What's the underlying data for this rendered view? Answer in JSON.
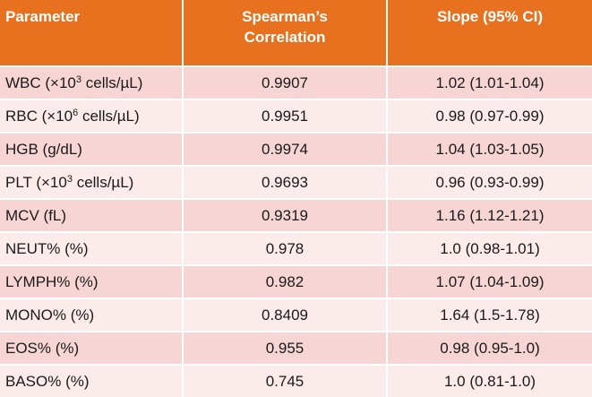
{
  "table": {
    "headers": {
      "parameter": "Parameter",
      "correlation_line1": "Spearman’s",
      "correlation_line2": "Correlation",
      "slope": "Slope (95% CI)"
    },
    "rows": [
      {
        "param_prefix": "WBC (×10",
        "param_sup": "3",
        "param_suffix": " cells/µL)",
        "correlation": "0.9907",
        "slope": "1.02 (1.01-1.04)"
      },
      {
        "param_prefix": "RBC (×10",
        "param_sup": "6",
        "param_suffix": " cells/µL)",
        "correlation": "0.9951",
        "slope": "0.98 (0.97-0.99)"
      },
      {
        "param_prefix": "HGB (g/dL)",
        "param_sup": "",
        "param_suffix": "",
        "correlation": "0.9974",
        "slope": "1.04 (1.03-1.05)"
      },
      {
        "param_prefix": "PLT (×10",
        "param_sup": "3",
        "param_suffix": " cells/µL)",
        "correlation": "0.9693",
        "slope": "0.96 (0.93-0.99)"
      },
      {
        "param_prefix": "MCV (fL)",
        "param_sup": "",
        "param_suffix": "",
        "correlation": "0.9319",
        "slope": "1.16 (1.12-1.21)"
      },
      {
        "param_prefix": "NEUT% (%)",
        "param_sup": "",
        "param_suffix": "",
        "correlation": "0.978",
        "slope": "1.0 (0.98-1.01)"
      },
      {
        "param_prefix": "LYMPH% (%)",
        "param_sup": "",
        "param_suffix": "",
        "correlation": "0.982",
        "slope": "1.07 (1.04-1.09)"
      },
      {
        "param_prefix": "MONO% (%)",
        "param_sup": "",
        "param_suffix": "",
        "correlation": "0.8409",
        "slope": "1.64 (1.5-1.78)"
      },
      {
        "param_prefix": "EOS% (%)",
        "param_sup": "",
        "param_suffix": "",
        "correlation": "0.955",
        "slope": "0.98 (0.95-1.0)"
      },
      {
        "param_prefix": "BASO% (%)",
        "param_sup": "",
        "param_suffix": "",
        "correlation": "0.745",
        "slope": "1.0 (0.81-1.0)"
      }
    ]
  },
  "colors": {
    "header_bg": "#E8711F",
    "row_odd_bg": "#F6D5D4",
    "row_even_bg": "#FBEBEA"
  }
}
